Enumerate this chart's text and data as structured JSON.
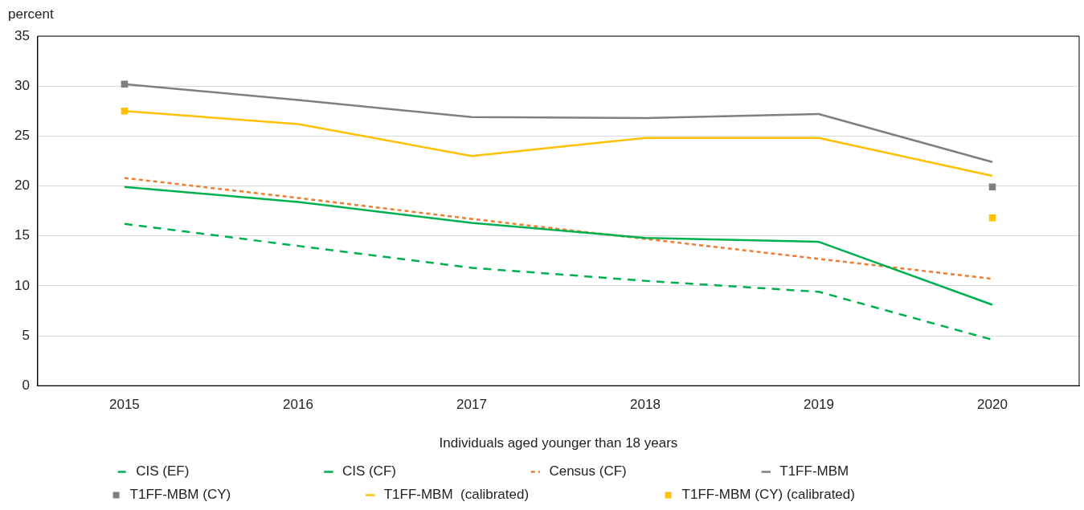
{
  "chart_data": {
    "type": "line",
    "ylabel": "percent",
    "xlabel": "Individuals aged younger than 18 years",
    "categories": [
      "2015",
      "2016",
      "2017",
      "2018",
      "2019",
      "2020"
    ],
    "ylim": [
      0,
      35
    ],
    "yticks": [
      0,
      5,
      10,
      15,
      20,
      25,
      30,
      35
    ],
    "grid": "y",
    "legend": "bottom",
    "series": [
      {
        "name": "CIS (EF)",
        "type": "line",
        "color": "#00b050",
        "line_style": "dashed",
        "marker": "none",
        "values": [
          16.2,
          14.0,
          11.8,
          10.5,
          9.4,
          4.6
        ]
      },
      {
        "name": "CIS (CF)",
        "type": "line",
        "color": "#00b050",
        "line_style": "solid",
        "marker": "none",
        "values": [
          19.9,
          18.4,
          16.3,
          14.8,
          14.4,
          8.1
        ]
      },
      {
        "name": "Census (CF)",
        "type": "line",
        "color": "#ed7d31",
        "line_style": "dotted",
        "marker": "none",
        "values": [
          20.8,
          18.8,
          16.7,
          14.7,
          12.7,
          10.7
        ]
      },
      {
        "name": "T1FF-MBM",
        "type": "line",
        "color": "#7f7f7f",
        "line_style": "solid",
        "marker": "none",
        "values": [
          30.2,
          28.6,
          26.9,
          26.8,
          27.2,
          22.4
        ]
      },
      {
        "name": "T1FF-MBM (CY)",
        "type": "scatter",
        "color": "#7f7f7f",
        "marker": "square",
        "values": [
          30.2,
          null,
          null,
          null,
          null,
          19.9
        ]
      },
      {
        "name": "T1FF-MBM  (calibrated)",
        "type": "line",
        "color": "#ffc000",
        "line_style": "solid",
        "marker": "none",
        "values": [
          27.5,
          26.2,
          23.0,
          24.8,
          24.8,
          21.0
        ]
      },
      {
        "name": "T1FF-MBM (CY) (calibrated)",
        "type": "scatter",
        "color": "#ffc000",
        "marker": "square",
        "values": [
          27.5,
          null,
          null,
          null,
          null,
          16.8
        ]
      }
    ]
  }
}
